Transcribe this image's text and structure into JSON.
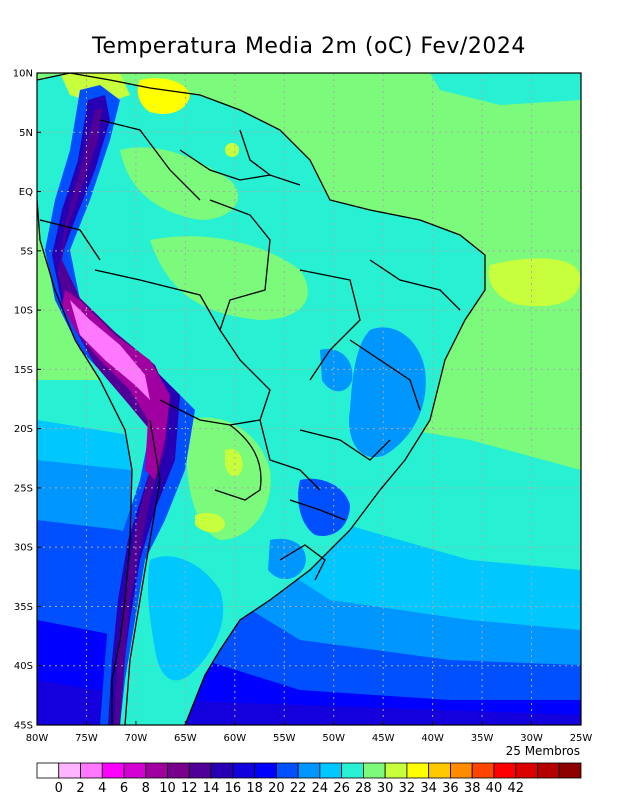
{
  "title": "Temperatura Media 2m (oC) Fev/2024",
  "members_note": "25 Membros",
  "lat_labels": [
    "10N",
    "5N",
    "EQ",
    "5S",
    "10S",
    "15S",
    "20S",
    "25S",
    "30S",
    "35S",
    "40S",
    "45S"
  ],
  "lon_labels": [
    "80W",
    "75W",
    "70W",
    "65W",
    "60W",
    "55W",
    "50W",
    "45W",
    "40W",
    "35W",
    "30W",
    "25W"
  ],
  "colorbar": {
    "labels": [
      "0",
      "2",
      "4",
      "6",
      "8",
      "10",
      "12",
      "14",
      "16",
      "18",
      "20",
      "22",
      "24",
      "26",
      "28",
      "30",
      "32",
      "34",
      "36",
      "38",
      "40",
      "42"
    ],
    "colors": [
      "#ffffff",
      "#ffb4ff",
      "#ff78ff",
      "#ff00ff",
      "#d200d2",
      "#a000a0",
      "#78008c",
      "#500096",
      "#2800b4",
      "#1400dc",
      "#0000ff",
      "#0050ff",
      "#0096ff",
      "#00c8ff",
      "#28f0d2",
      "#7bfa7b",
      "#c8ff3c",
      "#ffff00",
      "#ffc800",
      "#ff8c00",
      "#ff4600",
      "#ff0000",
      "#dc0000",
      "#b40000",
      "#8c0000"
    ]
  },
  "map_colors": {
    "ocean_warm": "#7bfa7b",
    "ocean_mid": "#28f0d2",
    "ocean_cool": "#00c8ff",
    "ocean_cold1": "#0096ff",
    "ocean_cold2": "#0050ff",
    "ocean_cold3": "#0000ff",
    "ocean_cold4": "#1400dc",
    "land_base": "#28f0d2",
    "land_warm": "#7bfa7b",
    "land_hot": "#c8ff3c",
    "land_hottest": "#ffff00",
    "highland": "#0096ff",
    "andes1": "#0050ff",
    "andes2": "#2800b4",
    "andes3": "#500096",
    "andes4": "#a000a0",
    "andes5": "#ff78ff",
    "south_cool": "#00c8ff",
    "grid": "#aaaaaa",
    "border": "#000000"
  }
}
